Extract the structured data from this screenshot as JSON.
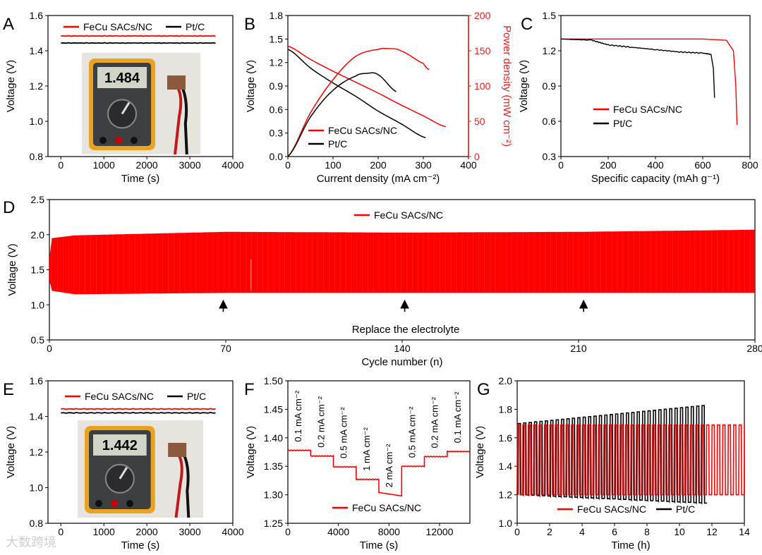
{
  "figure": {
    "watermark": "大数跨境"
  },
  "chart_data": [
    {
      "panel": "A",
      "type": "line",
      "xlabel": "Time (s)",
      "ylabel": "Voltage (V)",
      "xlim": [
        -300,
        4000
      ],
      "ylim": [
        0.8,
        1.6
      ],
      "xticks": [
        0,
        1000,
        2000,
        3000,
        4000
      ],
      "yticks": [
        0.8,
        1.0,
        1.2,
        1.4,
        1.6
      ],
      "xtick_labels": [
        "0",
        "1000",
        "2000",
        "3000",
        "4000"
      ],
      "ytick_labels": [
        "0.8",
        "1.0",
        "1.2",
        "1.4",
        "1.6"
      ],
      "legend": "top",
      "series": [
        {
          "name": "FeCu SACs/NC",
          "color": "#ff0000",
          "x": [
            0,
            3600
          ],
          "y": [
            1.484,
            1.484
          ]
        },
        {
          "name": "Pt/C",
          "color": "#000000",
          "x": [
            0,
            3600
          ],
          "y": [
            1.444,
            1.444
          ]
        }
      ],
      "inset_photo": {
        "reading": "1.484",
        "caption": "multimeter reading"
      }
    },
    {
      "panel": "B",
      "type": "line",
      "xlabel": "Current density (mA cm⁻²)",
      "ylabel": "Voltage (V)",
      "ylabel2": "Power density (mW cm⁻²)",
      "xlim": [
        0,
        400
      ],
      "ylim": [
        0,
        1.8
      ],
      "ylim2": [
        0,
        200
      ],
      "xticks": [
        0,
        100,
        200,
        300,
        400
      ],
      "yticks": [
        0,
        0.3,
        0.6,
        0.9,
        1.2,
        1.5,
        1.8
      ],
      "yticks2": [
        0,
        50,
        100,
        150,
        200
      ],
      "xtick_labels": [
        "0",
        "100",
        "200",
        "300",
        "400"
      ],
      "ytick_labels": [
        "0.0",
        "0.3",
        "0.6",
        "0.9",
        "1.2",
        "1.5",
        "1.8"
      ],
      "ytick2_labels": [
        "0",
        "50",
        "100",
        "150",
        "200"
      ],
      "legend": "bottom-center",
      "series": [
        {
          "name": "FeCu SACs/NC",
          "color": "#ff0000",
          "axis": "left",
          "x": [
            0,
            50,
            100,
            150,
            200,
            250,
            300,
            350
          ],
          "y": [
            1.41,
            1.24,
            1.09,
            0.95,
            0.81,
            0.66,
            0.52,
            0.38
          ]
        },
        {
          "name": "Pt/C",
          "color": "#000000",
          "axis": "left",
          "x": [
            0,
            50,
            100,
            150,
            200,
            250,
            305
          ],
          "y": [
            1.37,
            1.13,
            0.94,
            0.77,
            0.58,
            0.42,
            0.24
          ]
        },
        {
          "name": "FeCu SACs/NC power",
          "color": "#ff0000",
          "axis": "right",
          "legend": false,
          "x": [
            0,
            50,
            100,
            150,
            200,
            225,
            250,
            300,
            313
          ],
          "y": [
            0,
            62,
            109,
            142,
            152,
            153,
            150,
            132,
            123
          ]
        },
        {
          "name": "Pt/C power",
          "color": "#000000",
          "axis": "right",
          "legend": false,
          "x": [
            0,
            50,
            100,
            150,
            175,
            200,
            240
          ],
          "y": [
            0,
            56,
            94,
            114,
            118,
            116,
            92
          ]
        }
      ]
    },
    {
      "panel": "C",
      "type": "line",
      "xlabel": "Specific capacity (mAh g⁻¹)",
      "ylabel": "Voltage (V)",
      "xlim": [
        0,
        800
      ],
      "ylim": [
        0.3,
        1.5
      ],
      "xticks": [
        0,
        200,
        400,
        600,
        800
      ],
      "yticks": [
        0.3,
        0.6,
        0.9,
        1.2,
        1.5
      ],
      "xtick_labels": [
        "0",
        "200",
        "400",
        "600",
        "800"
      ],
      "ytick_labels": [
        "0.3",
        "0.6",
        "0.9",
        "1.2",
        "1.5"
      ],
      "legend": "lower-left",
      "series": [
        {
          "name": "FeCu SACs/NC",
          "color": "#ff0000",
          "x": [
            0,
            200,
            400,
            600,
            700,
            730,
            740,
            745
          ],
          "y": [
            1.3,
            1.3,
            1.3,
            1.3,
            1.29,
            1.2,
            0.9,
            0.57
          ]
        },
        {
          "name": "Pt/C",
          "color": "#000000",
          "x": [
            0,
            130,
            200,
            300,
            400,
            500,
            600,
            635,
            645,
            650
          ],
          "y": [
            1.3,
            1.29,
            1.25,
            1.23,
            1.21,
            1.19,
            1.18,
            1.17,
            1.05,
            0.8
          ]
        }
      ]
    },
    {
      "panel": "D",
      "type": "line",
      "xlabel": "Cycle number (n)",
      "ylabel": "Voltage (V)",
      "xlim": [
        0,
        280
      ],
      "ylim": [
        0.5,
        2.5
      ],
      "xticks": [
        0,
        70,
        140,
        210,
        280
      ],
      "yticks": [
        0.5,
        1.0,
        1.5,
        2.0,
        2.5
      ],
      "xtick_labels": [
        "0",
        "70",
        "140",
        "210",
        "280"
      ],
      "ytick_labels": [
        "0.5",
        "1.0",
        "1.5",
        "2.0",
        "2.5"
      ],
      "legend": "top",
      "series": [
        {
          "name": "FeCu SACs/NC",
          "color": "#ff0000",
          "x": [
            0,
            1,
            10,
            70,
            140,
            210,
            280
          ],
          "upper": [
            1.67,
            1.95,
            1.99,
            2.04,
            2.03,
            2.04,
            2.07
          ],
          "lower": [
            1.35,
            1.2,
            1.15,
            1.17,
            1.17,
            1.17,
            1.17
          ]
        }
      ],
      "annotation": {
        "text": "Replace the electrolyte",
        "arrows_x": [
          69,
          141,
          212
        ],
        "arrow_from_y": 0.9,
        "arrow_to_y": 1.07
      }
    },
    {
      "panel": "E",
      "type": "line",
      "xlabel": "Time (s)",
      "ylabel": "Voltage (V)",
      "xlim": [
        -300,
        4000
      ],
      "ylim": [
        0.8,
        1.6
      ],
      "xticks": [
        0,
        1000,
        2000,
        3000,
        4000
      ],
      "yticks": [
        0.8,
        1.0,
        1.2,
        1.4,
        1.6
      ],
      "xtick_labels": [
        "0",
        "1000",
        "2000",
        "3000",
        "4000"
      ],
      "ytick_labels": [
        "0.8",
        "1.0",
        "1.2",
        "1.4",
        "1.6"
      ],
      "legend": "top",
      "series": [
        {
          "name": "FeCu SACs/NC",
          "color": "#ff0000",
          "x": [
            0,
            3600
          ],
          "y": [
            1.442,
            1.442
          ]
        },
        {
          "name": "Pt/C",
          "color": "#000000",
          "x": [
            0,
            3600
          ],
          "y": [
            1.42,
            1.42
          ]
        }
      ],
      "inset_photo": {
        "reading": "1.442",
        "caption": "multimeter reading"
      }
    },
    {
      "panel": "F",
      "type": "line",
      "xlabel": "Time (s)",
      "ylabel": "Voltage (V)",
      "xlim": [
        0,
        14400
      ],
      "ylim": [
        1.25,
        1.5
      ],
      "xticks": [
        0,
        4000,
        8000,
        12000
      ],
      "yticks": [
        1.25,
        1.3,
        1.35,
        1.4,
        1.45,
        1.5
      ],
      "xtick_labels": [
        "0",
        "4000",
        "8000",
        "12000"
      ],
      "ytick_labels": [
        "1.25",
        "1.30",
        "1.35",
        "1.40",
        "1.45",
        "1.50"
      ],
      "legend": "bottom-center",
      "steps": [
        {
          "label": "0.1 mA cm⁻²",
          "t0": 0,
          "t1": 1800,
          "v": 1.378
        },
        {
          "label": "0.2 mA cm⁻²",
          "t0": 1800,
          "t1": 3600,
          "v": 1.368
        },
        {
          "label": "0.5 mA cm⁻²",
          "t0": 3600,
          "t1": 5400,
          "v": 1.349
        },
        {
          "label": "1 mA cm⁻²",
          "t0": 5400,
          "t1": 7200,
          "v": 1.327
        },
        {
          "label": "2 mA cm⁻²",
          "t0": 7200,
          "t1": 9000,
          "v": 1.298
        },
        {
          "label": "0.5 mA cm⁻²",
          "t0": 9000,
          "t1": 10800,
          "v": 1.35
        },
        {
          "label": "0.2 mA cm⁻²",
          "t0": 10800,
          "t1": 12600,
          "v": 1.367
        },
        {
          "label": "0.1 mA cm⁻²",
          "t0": 12600,
          "t1": 14400,
          "v": 1.376
        }
      ],
      "series": [
        {
          "name": "FeCu SACs/NC",
          "color": "#ff0000"
        }
      ]
    },
    {
      "panel": "G",
      "type": "line",
      "xlabel": "Time (h)",
      "ylabel": "Voltage (V)",
      "xlim": [
        0,
        14
      ],
      "ylim": [
        1.0,
        2.0
      ],
      "xticks": [
        0,
        2,
        4,
        6,
        8,
        10,
        12,
        14
      ],
      "yticks": [
        1.0,
        1.2,
        1.4,
        1.6,
        1.8,
        2.0
      ],
      "xtick_labels": [
        "0",
        "2",
        "4",
        "6",
        "8",
        "10",
        "12",
        "14"
      ],
      "ytick_labels": [
        "1.0",
        "1.2",
        "1.4",
        "1.6",
        "1.8",
        "2.0"
      ],
      "legend": "bottom-center",
      "series": [
        {
          "name": "FeCu SACs/NC",
          "color": "#ff0000",
          "t_end": 14,
          "period": 0.333,
          "upper_start": 1.69,
          "upper_end": 1.69,
          "lower_start": 1.2,
          "lower_end": 1.2
        },
        {
          "name": "Pt/C",
          "color": "#000000",
          "t_end": 11.7,
          "period": 0.333,
          "upper_start": 1.7,
          "upper_end": 1.83,
          "lower_start": 1.2,
          "lower_end": 1.14
        }
      ]
    }
  ]
}
